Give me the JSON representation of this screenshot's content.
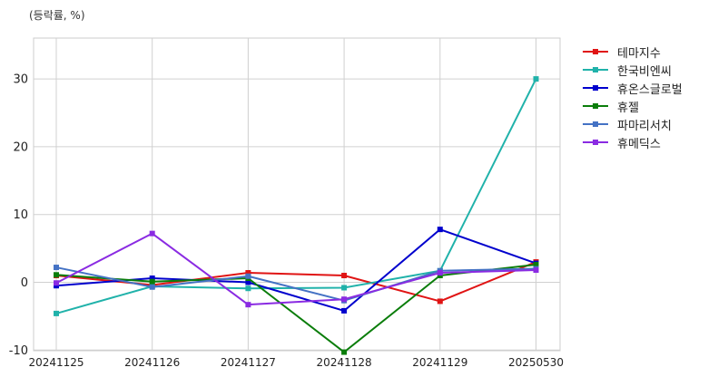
{
  "unit_label": "(등락률, %)",
  "chart_data": {
    "type": "line",
    "x": [
      "20241125",
      "20241126",
      "20241127",
      "20241128",
      "20241129",
      "20250530"
    ],
    "ylim": [
      -10,
      36
    ],
    "yticks": [
      -10,
      0,
      10,
      20,
      30
    ],
    "grid": true,
    "legend_position": "right",
    "series": [
      {
        "name": "테마지수",
        "color": "#e01414",
        "values": [
          1.0,
          -0.4,
          1.4,
          1.0,
          -2.8,
          3.0
        ]
      },
      {
        "name": "한국비엔씨",
        "color": "#20b2aa",
        "values": [
          -4.6,
          -0.6,
          -0.9,
          -0.8,
          1.7,
          30.0
        ]
      },
      {
        "name": "휴온스글로벌",
        "color": "#0000cd",
        "values": [
          -0.5,
          0.6,
          0.0,
          -4.2,
          7.8,
          2.8
        ]
      },
      {
        "name": "휴젤",
        "color": "#0a7d0a",
        "values": [
          1.1,
          0.1,
          0.6,
          -10.3,
          1.0,
          2.6
        ]
      },
      {
        "name": "파마리서치",
        "color": "#4472c4",
        "values": [
          2.2,
          -0.7,
          0.9,
          -2.7,
          1.7,
          2.0
        ]
      },
      {
        "name": "휴메딕스",
        "color": "#8a2be2",
        "values": [
          -0.1,
          7.2,
          -3.3,
          -2.5,
          1.4,
          1.8
        ]
      }
    ]
  }
}
